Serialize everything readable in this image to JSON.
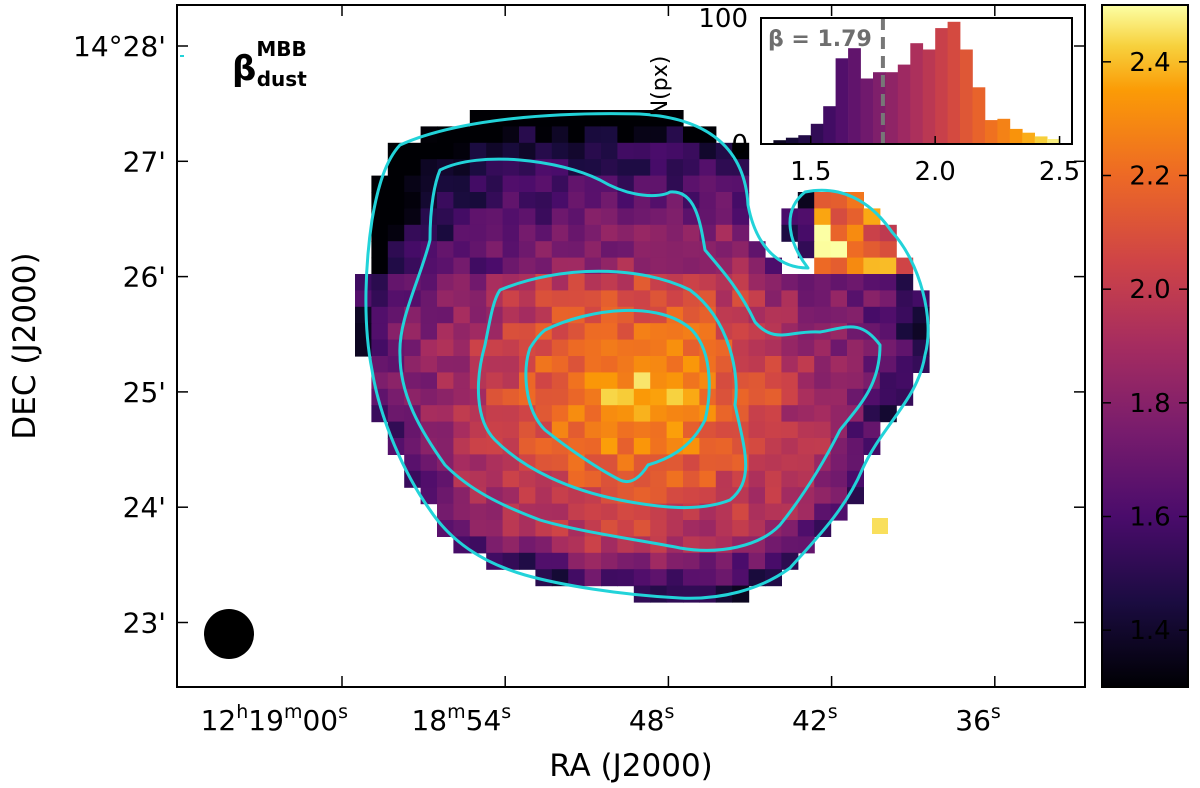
{
  "chart_data": [
    {
      "type": "heatmap",
      "title_base": "β",
      "title_sup": "MBB",
      "title_sub": "dust",
      "xlabel": "RA (J2000)",
      "ylabel": "DEC  (J2000)",
      "x_ticks": [
        {
          "label": "12",
          "h": "h",
          "m_val": "19",
          "m": "m",
          "s_val": "00",
          "s": "s",
          "ra_sec": 0
        },
        {
          "label": "18",
          "m": "m",
          "s_val": "54",
          "s": "s",
          "ra_sec": 6
        },
        {
          "label": "48",
          "s": "s",
          "ra_sec": 12
        },
        {
          "label": "42",
          "s": "s",
          "ra_sec": 18
        },
        {
          "label": "36",
          "s": "s",
          "ra_sec": 24
        }
      ],
      "y_ticks": [
        {
          "label": "14°28'",
          "dec_arcmin": 28
        },
        {
          "label": "27'",
          "dec_arcmin": 27
        },
        {
          "label": "26'",
          "dec_arcmin": 26
        },
        {
          "label": "25'",
          "dec_arcmin": 25
        },
        {
          "label": "24'",
          "dec_arcmin": 24
        },
        {
          "label": "23'",
          "dec_arcmin": 23
        }
      ],
      "colorbar": {
        "colormap": "inferno",
        "range": [
          1.3,
          2.5
        ],
        "ticks": [
          {
            "label": "1.4",
            "value": 1.4
          },
          {
            "label": "1.6",
            "value": 1.6
          },
          {
            "label": "1.8",
            "value": 1.8
          },
          {
            "label": "2.0",
            "value": 2.0
          },
          {
            "label": "2.2",
            "value": 2.2
          },
          {
            "label": "2.4",
            "value": 2.4
          }
        ]
      },
      "contour_color": "#22d3d9",
      "beam_color": "#000000"
    },
    {
      "type": "bar",
      "inset": true,
      "ylabel": "N(px)",
      "annotation": "β = 1.79",
      "annotation_value": 1.79,
      "xlim": [
        1.3,
        2.55
      ],
      "ylim": [
        0,
        100
      ],
      "x_ticks": [
        {
          "label": "1.5",
          "value": 1.5
        },
        {
          "label": "2.0",
          "value": 2.0
        },
        {
          "label": "2.5",
          "value": 2.5
        }
      ],
      "y_ticks": [
        {
          "label": "0",
          "value": 0
        },
        {
          "label": "100",
          "value": 100
        }
      ],
      "bin_edges": [
        1.35,
        1.4,
        1.45,
        1.5,
        1.55,
        1.6,
        1.65,
        1.7,
        1.75,
        1.8,
        1.85,
        1.9,
        1.95,
        2.0,
        2.05,
        2.1,
        2.15,
        2.2,
        2.25,
        2.3,
        2.35,
        2.4,
        2.45,
        2.5
      ],
      "values": [
        3,
        5,
        7,
        16,
        30,
        68,
        76,
        52,
        57,
        57,
        63,
        80,
        75,
        92,
        97,
        75,
        45,
        19,
        20,
        12,
        9,
        6,
        4
      ]
    }
  ]
}
